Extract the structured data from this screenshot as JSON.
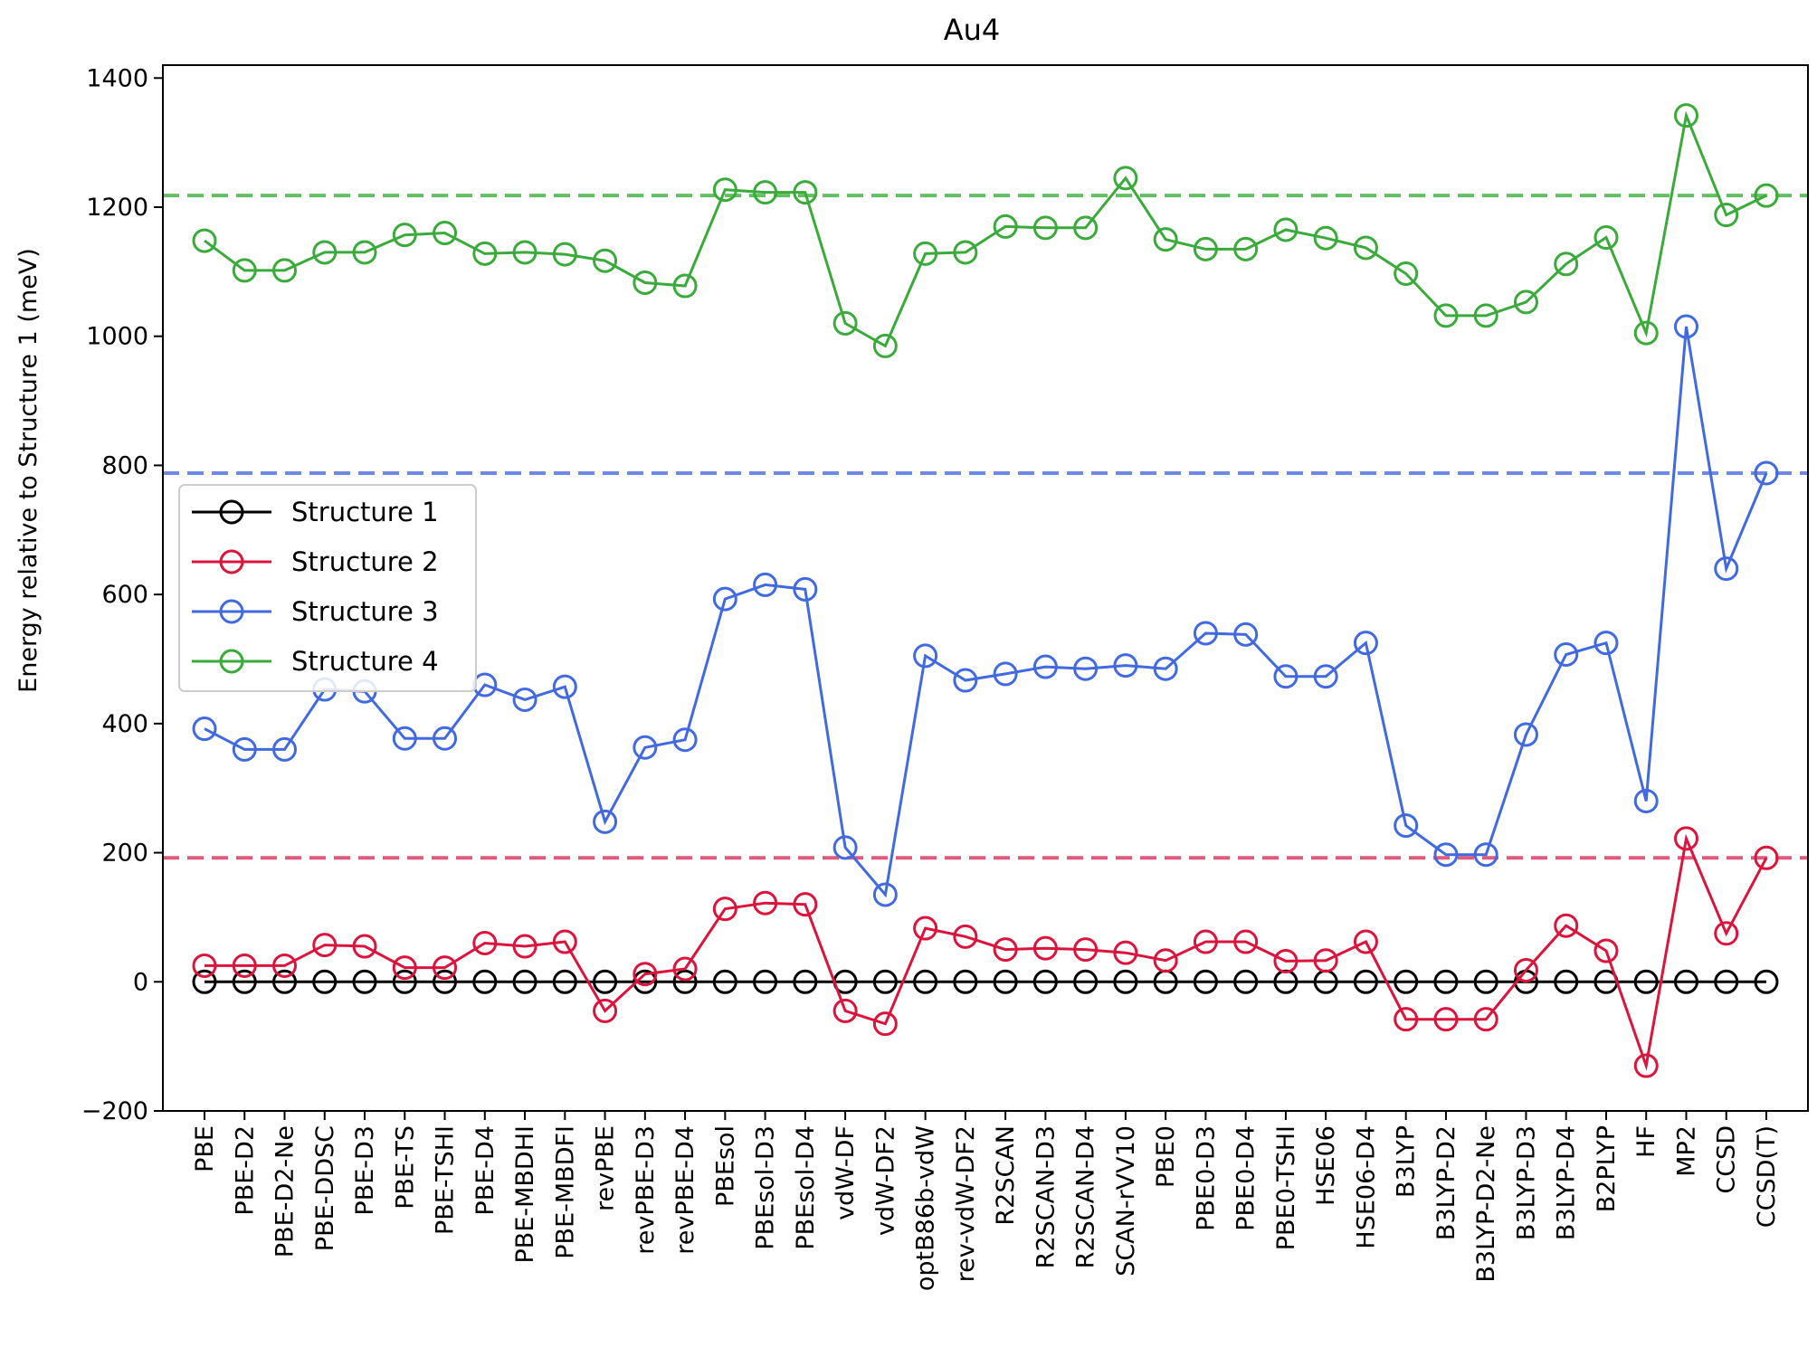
{
  "chart_data": {
    "type": "line",
    "title": "Au4",
    "xlabel": "",
    "ylabel": "Energy relative to Structure 1 (meV)",
    "ylim": [
      -200,
      1420
    ],
    "yticks": [
      -200,
      0,
      200,
      400,
      600,
      800,
      1000,
      1200,
      1400
    ],
    "grid": false,
    "legend_position": "center-left",
    "categories": [
      "PBE",
      "PBE-D2",
      "PBE-D2-Ne",
      "PBE-DDSC",
      "PBE-D3",
      "PBE-TS",
      "PBE-TSHI",
      "PBE-D4",
      "PBE-MBDHI",
      "PBE-MBDFI",
      "revPBE",
      "revPBE-D3",
      "revPBE-D4",
      "PBEsol",
      "PBEsol-D3",
      "PBEsol-D4",
      "vdW-DF",
      "vdW-DF2",
      "optB86b-vdW",
      "rev-vdW-DF2",
      "R2SCAN",
      "R2SCAN-D3",
      "R2SCAN-D4",
      "SCAN-rVV10",
      "PBE0",
      "PBE0-D3",
      "PBE0-D4",
      "PBE0-TSHI",
      "HSE06",
      "HSE06-D4",
      "B3LYP",
      "B3LYP-D2",
      "B3LYP-D2-Ne",
      "B3LYP-D3",
      "B3LYP-D4",
      "B2PLYP",
      "HF",
      "MP2",
      "CCSD",
      "CCSD(T)"
    ],
    "series": [
      {
        "name": "Structure 1",
        "color": "#000000",
        "values": [
          0,
          0,
          0,
          0,
          0,
          0,
          0,
          0,
          0,
          0,
          0,
          0,
          0,
          0,
          0,
          0,
          0,
          0,
          0,
          0,
          0,
          0,
          0,
          0,
          0,
          0,
          0,
          0,
          0,
          0,
          0,
          0,
          0,
          0,
          0,
          0,
          0,
          0,
          0,
          0
        ]
      },
      {
        "name": "Structure 2",
        "color": "#dc143c",
        "values": [
          25,
          25,
          25,
          57,
          55,
          22,
          22,
          60,
          55,
          62,
          -45,
          12,
          20,
          113,
          122,
          120,
          -45,
          -65,
          83,
          70,
          50,
          52,
          50,
          45,
          33,
          62,
          62,
          32,
          33,
          62,
          -58,
          -58,
          -58,
          18,
          87,
          48,
          -130,
          222,
          75,
          192
        ]
      },
      {
        "name": "Structure 3",
        "color": "#4169e1",
        "values": [
          392,
          360,
          360,
          453,
          450,
          377,
          377,
          460,
          437,
          457,
          248,
          363,
          375,
          593,
          615,
          608,
          208,
          135,
          505,
          467,
          477,
          488,
          485,
          490,
          485,
          540,
          538,
          473,
          473,
          525,
          242,
          197,
          197,
          383,
          507,
          525,
          280,
          1015,
          640,
          788
        ]
      },
      {
        "name": "Structure 4",
        "color": "#3aaa3a",
        "values": [
          1148,
          1102,
          1102,
          1130,
          1130,
          1157,
          1160,
          1128,
          1130,
          1127,
          1117,
          1083,
          1078,
          1227,
          1223,
          1223,
          1020,
          985,
          1128,
          1130,
          1170,
          1168,
          1168,
          1245,
          1150,
          1135,
          1135,
          1165,
          1152,
          1137,
          1097,
          1032,
          1032,
          1053,
          1112,
          1153,
          1005,
          1342,
          1188,
          1218
        ]
      }
    ],
    "reference_lines": [
      {
        "value": 192,
        "color": "#e05a7d"
      },
      {
        "value": 788,
        "color": "#6f89e6"
      },
      {
        "value": 1218,
        "color": "#62c062"
      }
    ]
  }
}
